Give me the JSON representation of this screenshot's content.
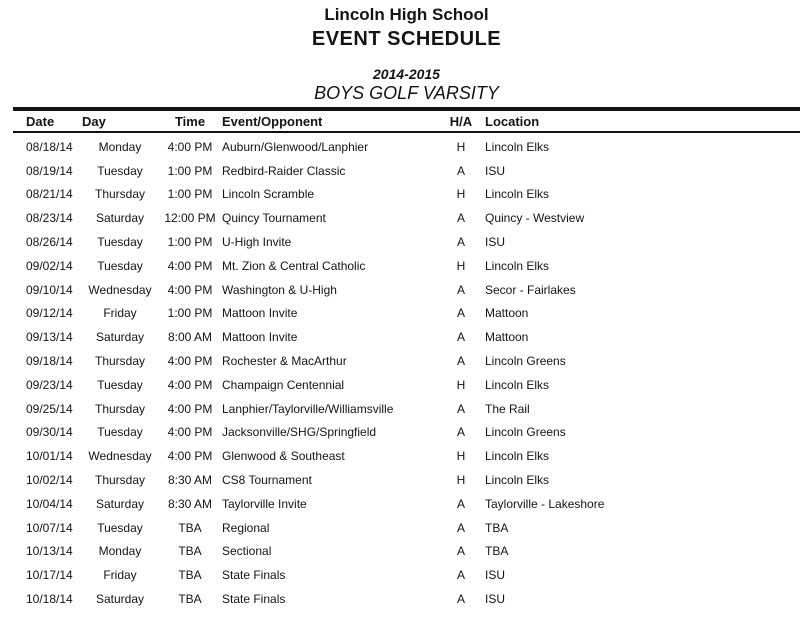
{
  "page": {
    "school_name": "Lincoln High School",
    "document_title": "EVENT SCHEDULE",
    "season_years": "2014-2015",
    "team_name": "BOYS GOLF VARSITY"
  },
  "colors": {
    "text": "#141414",
    "rule": "#111111",
    "background": "#ffffff"
  },
  "schedule": {
    "columns": [
      {
        "key": "date",
        "label": "Date"
      },
      {
        "key": "day",
        "label": "Day"
      },
      {
        "key": "time",
        "label": "Time"
      },
      {
        "key": "event",
        "label": "Event/Opponent"
      },
      {
        "key": "ha",
        "label": "H/A"
      },
      {
        "key": "location",
        "label": "Location"
      }
    ],
    "rows": [
      {
        "date": "08/18/14",
        "day": "Monday",
        "time": "4:00 PM",
        "event": "Auburn/Glenwood/Lanphier",
        "ha": "H",
        "location": "Lincoln Elks"
      },
      {
        "date": "08/19/14",
        "day": "Tuesday",
        "time": "1:00 PM",
        "event": "Redbird-Raider Classic",
        "ha": "A",
        "location": "ISU"
      },
      {
        "date": "08/21/14",
        "day": "Thursday",
        "time": "1:00 PM",
        "event": "Lincoln Scramble",
        "ha": "H",
        "location": "Lincoln Elks"
      },
      {
        "date": "08/23/14",
        "day": "Saturday",
        "time": "12:00 PM",
        "event": "Quincy Tournament",
        "ha": "A",
        "location": "Quincy - Westview"
      },
      {
        "date": "08/26/14",
        "day": "Tuesday",
        "time": "1:00 PM",
        "event": "U-High Invite",
        "ha": "A",
        "location": "ISU"
      },
      {
        "date": "09/02/14",
        "day": "Tuesday",
        "time": "4:00 PM",
        "event": "Mt. Zion & Central Catholic",
        "ha": "H",
        "location": "Lincoln Elks"
      },
      {
        "date": "09/10/14",
        "day": "Wednesday",
        "time": "4:00 PM",
        "event": "Washington & U-High",
        "ha": "A",
        "location": "Secor - Fairlakes"
      },
      {
        "date": "09/12/14",
        "day": "Friday",
        "time": "1:00 PM",
        "event": "Mattoon Invite",
        "ha": "A",
        "location": "Mattoon"
      },
      {
        "date": "09/13/14",
        "day": "Saturday",
        "time": "8:00 AM",
        "event": "Mattoon Invite",
        "ha": "A",
        "location": "Mattoon"
      },
      {
        "date": "09/18/14",
        "day": "Thursday",
        "time": "4:00 PM",
        "event": "Rochester & MacArthur",
        "ha": "A",
        "location": "Lincoln Greens"
      },
      {
        "date": "09/23/14",
        "day": "Tuesday",
        "time": "4:00 PM",
        "event": "Champaign Centennial",
        "ha": "H",
        "location": "Lincoln Elks"
      },
      {
        "date": "09/25/14",
        "day": "Thursday",
        "time": "4:00 PM",
        "event": "Lanphier/Taylorville/Williamsville",
        "ha": "A",
        "location": "The Rail"
      },
      {
        "date": "09/30/14",
        "day": "Tuesday",
        "time": "4:00 PM",
        "event": "Jacksonville/SHG/Springfield",
        "ha": "A",
        "location": "Lincoln Greens"
      },
      {
        "date": "10/01/14",
        "day": "Wednesday",
        "time": "4:00 PM",
        "event": "Glenwood & Southeast",
        "ha": "H",
        "location": "Lincoln Elks"
      },
      {
        "date": "10/02/14",
        "day": "Thursday",
        "time": "8:30 AM",
        "event": "CS8 Tournament",
        "ha": "H",
        "location": "Lincoln Elks"
      },
      {
        "date": "10/04/14",
        "day": "Saturday",
        "time": "8:30 AM",
        "event": "Taylorville Invite",
        "ha": "A",
        "location": "Taylorville - Lakeshore"
      },
      {
        "date": "10/07/14",
        "day": "Tuesday",
        "time": "TBA",
        "event": "Regional",
        "ha": "A",
        "location": "TBA"
      },
      {
        "date": "10/13/14",
        "day": "Monday",
        "time": "TBA",
        "event": "Sectional",
        "ha": "A",
        "location": "TBA"
      },
      {
        "date": "10/17/14",
        "day": "Friday",
        "time": "TBA",
        "event": "State Finals",
        "ha": "A",
        "location": "ISU"
      },
      {
        "date": "10/18/14",
        "day": "Saturday",
        "time": "TBA",
        "event": "State Finals",
        "ha": "A",
        "location": "ISU"
      }
    ]
  }
}
